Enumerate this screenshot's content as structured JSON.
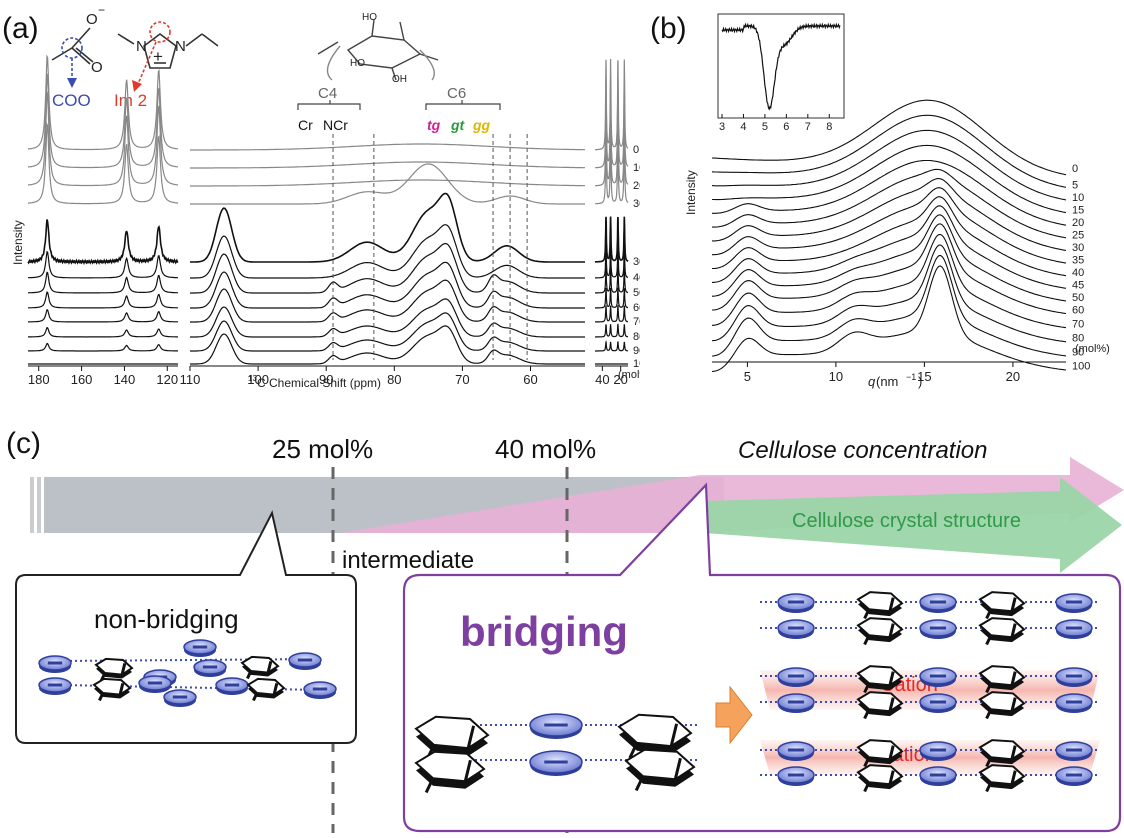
{
  "panel_a": {
    "label": "(a)",
    "ylabel": "Intensity",
    "xlabel_sup": "13",
    "xlabel": "C Chemical Shift (ppm)",
    "anion_charge": "O",
    "anion_minus": "−",
    "anion_O": "O",
    "anion_group": "COO",
    "cation_N1": "N",
    "cation_N2": "N",
    "cation_plus": "+",
    "cation_group": "Im 2",
    "sugar_HO1": "HO",
    "sugar_HO2": "HO",
    "sugar_OH": "OH",
    "c4_label": "C4",
    "c6_label": "C6",
    "cr_label": "Cr",
    "ncr_label": "NCr",
    "tg_label": "tg",
    "gt_label": "gt",
    "gg_label": "gg",
    "ticks_left": [
      "180",
      "160",
      "140",
      "120"
    ],
    "ticks_mid": [
      "110",
      "100",
      "90",
      "80",
      "70",
      "60"
    ],
    "ticks_right": [
      "40",
      "20"
    ],
    "unit": "(mol%)"
  },
  "panel_b": {
    "label": "(b)",
    "ylabel": "Intensity",
    "xlabel_italic": "q",
    "xlabel_rest": " (nm",
    "xlabel_sup": "−1",
    "xlabel_close": ")",
    "ticks_x": [
      "5",
      "10",
      "15",
      "20"
    ],
    "inset_ticks": [
      "3",
      "4",
      "5",
      "6",
      "7",
      "8"
    ],
    "unit": "(mol%)"
  },
  "panel_c": {
    "label": "(c)",
    "mark_25": "25 mol%",
    "mark_40": "40 mol%",
    "arrow_concentration": "Cellulose concentration",
    "arrow_crystal": "Cellulose crystal structure",
    "intermediate": "intermediate",
    "non_bridging": "non-bridging",
    "bridging": "bridging",
    "cation_1": "Cation",
    "cation_2": "Cation",
    "anion_symbol": "−"
  },
  "colors": {
    "anion_blue": "#3b4dae",
    "cation_red": "#e23a2a",
    "tg_magenta": "#d0218f",
    "gt_green": "#2a9a3a",
    "gg_yellow": "#d9b800",
    "bridging_purple": "#7d3fa0",
    "gray_bar": "#b9bec4",
    "pink_arrow": "#e6a6cf",
    "green_arrow": "#8ccf9a",
    "orange_arrow": "#f5a25d"
  },
  "chart_data": [
    {
      "type": "line",
      "title": "",
      "xlabel": "13C Chemical Shift (ppm)",
      "ylabel": "Intensity",
      "x_axis_reversed": true,
      "x_segments": [
        [
          185,
          115
        ],
        [
          110,
          52
        ],
        [
          48,
          12
        ]
      ],
      "series": [
        {
          "name": "0",
          "peaks_ppm": [
            176,
            139,
            124,
            36,
            31,
            23,
            16
          ]
        },
        {
          "name": "10",
          "peaks_ppm": [
            176,
            139,
            124,
            36,
            31,
            23,
            16
          ]
        },
        {
          "name": "20",
          "peaks_ppm": [
            176,
            139,
            124,
            36,
            31,
            23,
            16
          ]
        },
        {
          "name": "30",
          "peaks_ppm": [
            176,
            139,
            124,
            76,
            36,
            31,
            23,
            16
          ]
        },
        {
          "name": "30",
          "peaks_ppm": [
            176,
            139,
            124,
            105,
            84,
            75,
            63,
            36,
            31,
            23,
            16
          ]
        },
        {
          "name": "40",
          "peaks_ppm": [
            176,
            139,
            124,
            105,
            84,
            75,
            63,
            36,
            31,
            23,
            16
          ]
        },
        {
          "name": "50",
          "peaks_ppm": [
            176,
            139,
            124,
            105,
            84,
            75,
            63,
            36,
            31,
            23,
            16
          ]
        },
        {
          "name": "60",
          "peaks_ppm": [
            176,
            139,
            124,
            105,
            89,
            75,
            65,
            36,
            31,
            23,
            16
          ]
        },
        {
          "name": "70",
          "peaks_ppm": [
            176,
            139,
            124,
            105,
            89,
            75,
            65,
            36,
            31,
            23,
            16
          ]
        },
        {
          "name": "80",
          "peaks_ppm": [
            176,
            139,
            124,
            105,
            89,
            75,
            65,
            36,
            31,
            23,
            16
          ]
        },
        {
          "name": "90",
          "peaks_ppm": [
            176,
            139,
            124,
            105,
            89,
            75,
            65,
            36,
            31,
            23,
            16
          ]
        },
        {
          "name": "100",
          "peaks_ppm": [
            105,
            89,
            75,
            72,
            65
          ]
        }
      ],
      "reference_lines_ppm": [
        89,
        83,
        65.5,
        63,
        60.5
      ]
    },
    {
      "type": "line",
      "title": "",
      "xlabel": "q (nm−1)",
      "ylabel": "Intensity",
      "xlim": [
        3,
        23
      ],
      "series_names": [
        "0",
        "5",
        "10",
        "15",
        "20",
        "25",
        "30",
        "35",
        "40",
        "45",
        "50",
        "60",
        "70",
        "80",
        "90",
        "100"
      ],
      "broad_peak_q": 15.5,
      "crystal_peaks_q": [
        5,
        11,
        16
      ]
    },
    {
      "type": "line",
      "title": "",
      "xlim": [
        3,
        8.5
      ],
      "min_at_q": 5.2
    }
  ]
}
